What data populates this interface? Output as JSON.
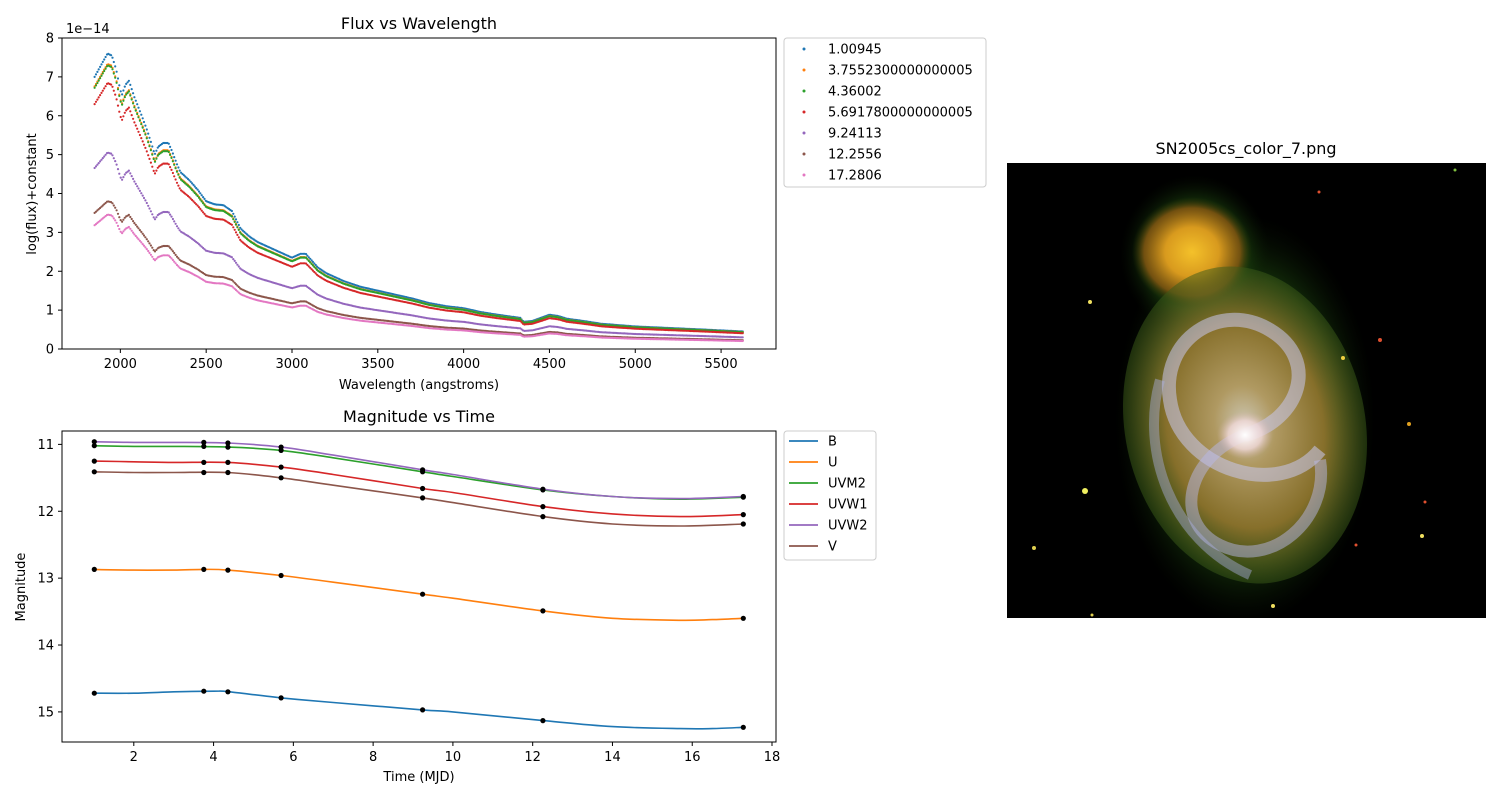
{
  "colors": {
    "series": [
      "#1f77b4",
      "#ff7f0e",
      "#2ca02c",
      "#d62728",
      "#9467bd",
      "#8c564b",
      "#e377c2"
    ],
    "frame": "#000000",
    "background": "#ffffff",
    "legend_border": "#cccccc"
  },
  "chart_data": [
    {
      "type": "scatter",
      "title": "Flux vs Wavelength",
      "xlabel": "Wavelength (angstroms)",
      "ylabel": "log(flux)+constant",
      "offset_text": "1e−14",
      "xlim": [
        1660,
        5820
      ],
      "ylim": [
        0,
        8
      ],
      "xticks": [
        2000,
        2500,
        3000,
        3500,
        4000,
        4500,
        5000,
        5500
      ],
      "yticks": [
        0,
        1,
        2,
        3,
        4,
        5,
        6,
        7,
        8
      ],
      "grid": false,
      "legend_position": "outside-right-top",
      "x_range": [
        1850,
        5630
      ],
      "series": [
        {
          "name": "1.00945",
          "scale": 1.0
        },
        {
          "name": "3.7552300000000005",
          "scale": 0.965
        },
        {
          "name": "4.36002",
          "scale": 0.96
        },
        {
          "name": "5.6917800000000005",
          "scale": 0.9
        },
        {
          "name": "9.24113",
          "scale": 0.665
        },
        {
          "name": "12.2556",
          "scale": 0.5
        },
        {
          "name": "17.2806",
          "scale": 0.455
        }
      ],
      "template": {
        "x": [
          1850,
          1875,
          1900,
          1925,
          1950,
          1975,
          2000,
          2010,
          2030,
          2050,
          2080,
          2120,
          2150,
          2180,
          2200,
          2220,
          2250,
          2280,
          2300,
          2330,
          2350,
          2400,
          2450,
          2500,
          2550,
          2600,
          2650,
          2700,
          2750,
          2800,
          2850,
          2900,
          2950,
          3000,
          3050,
          3080,
          3100,
          3150,
          3200,
          3300,
          3400,
          3500,
          3600,
          3700,
          3800,
          3900,
          4000,
          4100,
          4200,
          4330,
          4350,
          4400,
          4450,
          4500,
          4550,
          4600,
          4700,
          4800,
          5000,
          5200,
          5400,
          5630
        ],
        "y": [
          7.0,
          7.2,
          7.4,
          7.6,
          7.55,
          7.2,
          6.65,
          6.55,
          6.8,
          6.9,
          6.5,
          6.05,
          5.7,
          5.3,
          5.0,
          5.2,
          5.3,
          5.3,
          5.1,
          4.75,
          4.55,
          4.35,
          4.1,
          3.8,
          3.72,
          3.7,
          3.55,
          3.1,
          2.9,
          2.75,
          2.65,
          2.55,
          2.45,
          2.35,
          2.45,
          2.45,
          2.35,
          2.1,
          1.95,
          1.75,
          1.6,
          1.5,
          1.4,
          1.3,
          1.18,
          1.1,
          1.05,
          0.95,
          0.88,
          0.8,
          0.7,
          0.72,
          0.8,
          0.88,
          0.85,
          0.78,
          0.72,
          0.65,
          0.58,
          0.54,
          0.5,
          0.45
        ]
      }
    },
    {
      "type": "line",
      "title": "Magnitude vs Time",
      "xlabel": "Time (MJD)",
      "ylabel": "Magnitude",
      "xlim": [
        0.2,
        18.1
      ],
      "ylim": [
        15.45,
        10.8
      ],
      "yaxis_inverted": true,
      "xticks": [
        2,
        4,
        6,
        8,
        10,
        12,
        14,
        16,
        18
      ],
      "yticks": [
        11,
        12,
        13,
        14,
        15
      ],
      "grid": false,
      "legend_position": "outside-right-top",
      "observation_times": [
        1.00945,
        3.75523,
        4.36002,
        5.69178,
        9.24113,
        12.2556,
        17.2806
      ],
      "series": [
        {
          "name": "B",
          "curve": [
            [
              1.0,
              14.72
            ],
            [
              2.0,
              14.72
            ],
            [
              3.0,
              14.7
            ],
            [
              4.0,
              14.69
            ],
            [
              4.4,
              14.7
            ],
            [
              5.7,
              14.79
            ],
            [
              7.0,
              14.86
            ],
            [
              9.24,
              14.97
            ],
            [
              10.0,
              15.0
            ],
            [
              12.26,
              15.13
            ],
            [
              14.0,
              15.22
            ],
            [
              15.7,
              15.25
            ],
            [
              16.5,
              15.25
            ],
            [
              17.28,
              15.23
            ]
          ],
          "points": [
            14.72,
            14.69,
            14.7,
            14.79,
            14.97,
            15.13,
            15.23
          ]
        },
        {
          "name": "U",
          "curve": [
            [
              1.0,
              12.87
            ],
            [
              2.0,
              12.88
            ],
            [
              3.0,
              12.88
            ],
            [
              3.76,
              12.87
            ],
            [
              4.36,
              12.88
            ],
            [
              5.69,
              12.96
            ],
            [
              7.0,
              13.06
            ],
            [
              9.24,
              13.24
            ],
            [
              10.0,
              13.3
            ],
            [
              12.26,
              13.49
            ],
            [
              14.0,
              13.6
            ],
            [
              15.7,
              13.63
            ],
            [
              16.5,
              13.62
            ],
            [
              17.28,
              13.6
            ]
          ],
          "points": [
            12.87,
            12.87,
            12.88,
            12.96,
            13.24,
            13.49,
            13.6
          ]
        },
        {
          "name": "UVM2",
          "curve": [
            [
              1.0,
              11.02
            ],
            [
              2.0,
              11.03
            ],
            [
              3.0,
              11.03
            ],
            [
              4.36,
              11.04
            ],
            [
              5.69,
              11.09
            ],
            [
              7.0,
              11.2
            ],
            [
              9.24,
              11.41
            ],
            [
              10.0,
              11.48
            ],
            [
              12.26,
              11.68
            ],
            [
              14.0,
              11.78
            ],
            [
              15.7,
              11.82
            ],
            [
              17.28,
              11.79
            ]
          ],
          "points": [
            11.02,
            11.03,
            11.04,
            11.09,
            11.41,
            11.68,
            11.79
          ]
        },
        {
          "name": "UVW1",
          "curve": [
            [
              1.0,
              11.25
            ],
            [
              2.0,
              11.26
            ],
            [
              3.0,
              11.27
            ],
            [
              4.36,
              11.27
            ],
            [
              5.69,
              11.34
            ],
            [
              7.0,
              11.45
            ],
            [
              9.24,
              11.66
            ],
            [
              10.0,
              11.72
            ],
            [
              12.26,
              11.93
            ],
            [
              14.0,
              12.04
            ],
            [
              15.7,
              12.08
            ],
            [
              17.28,
              12.05
            ]
          ],
          "points": [
            11.25,
            11.27,
            11.27,
            11.34,
            11.66,
            11.93,
            12.05
          ]
        },
        {
          "name": "UVW2",
          "curve": [
            [
              1.0,
              10.96
            ],
            [
              2.0,
              10.97
            ],
            [
              3.0,
              10.97
            ],
            [
              4.36,
              10.98
            ],
            [
              5.69,
              11.04
            ],
            [
              7.0,
              11.16
            ],
            [
              9.24,
              11.38
            ],
            [
              10.0,
              11.45
            ],
            [
              12.26,
              11.67
            ],
            [
              14.0,
              11.78
            ],
            [
              15.7,
              11.81
            ],
            [
              17.28,
              11.78
            ]
          ],
          "points": [
            10.96,
            10.97,
            10.98,
            11.04,
            11.38,
            11.67,
            11.78
          ]
        },
        {
          "name": "V",
          "curve": [
            [
              1.0,
              11.41
            ],
            [
              2.0,
              11.42
            ],
            [
              3.0,
              11.42
            ],
            [
              4.36,
              11.42
            ],
            [
              5.69,
              11.5
            ],
            [
              7.0,
              11.61
            ],
            [
              9.24,
              11.8
            ],
            [
              10.0,
              11.87
            ],
            [
              12.26,
              12.08
            ],
            [
              14.0,
              12.19
            ],
            [
              15.7,
              12.22
            ],
            [
              17.28,
              12.19
            ]
          ],
          "points": [
            11.41,
            11.42,
            11.42,
            11.5,
            11.8,
            12.08,
            12.19
          ]
        }
      ]
    }
  ],
  "image_panel": {
    "title": "SN2005cs_color_7.png"
  }
}
